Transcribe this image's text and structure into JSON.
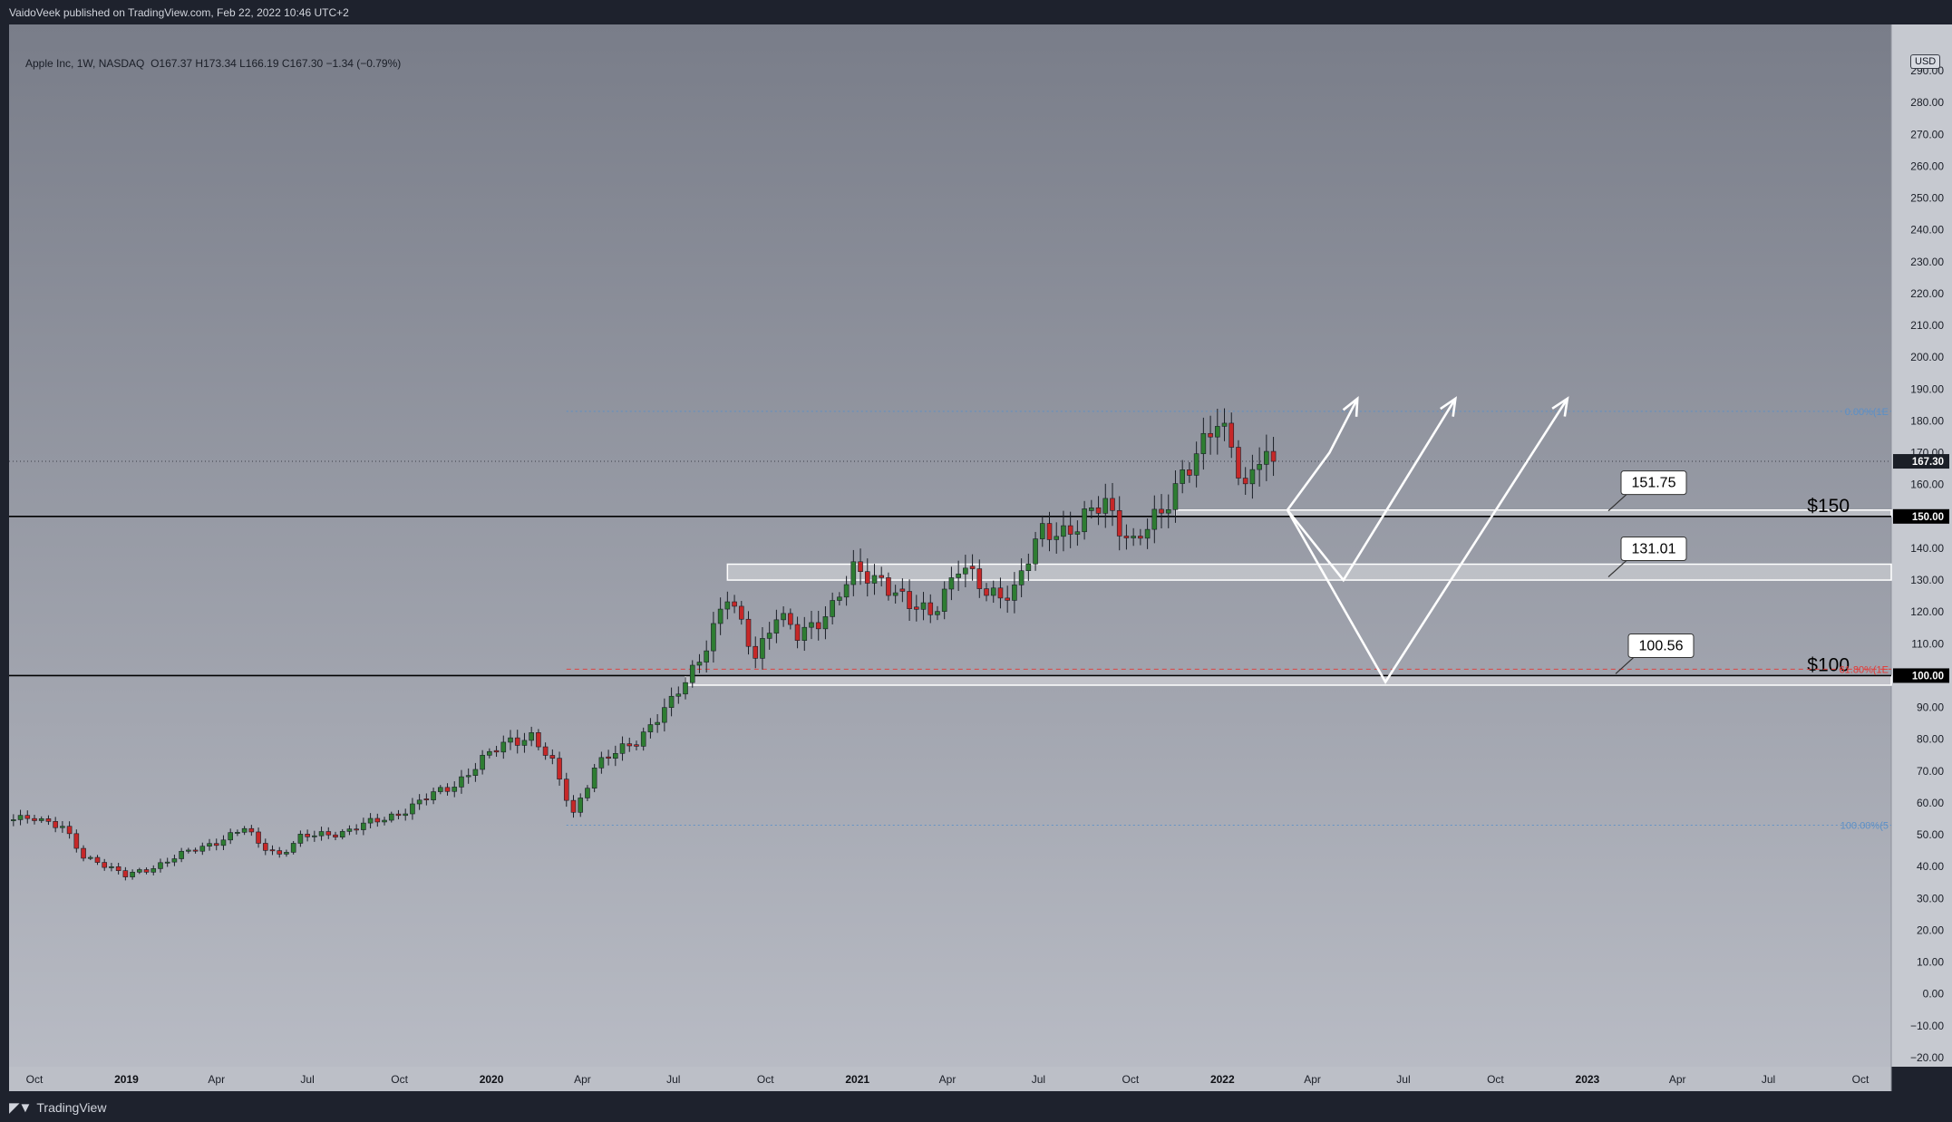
{
  "header": {
    "published": "VaidoVeek published on TradingView.com, Feb 22, 2022 10:46 UTC+2"
  },
  "legend": {
    "symbol": "Apple Inc, 1W, NASDAQ",
    "ohlc": "O167.37  H173.34  L166.19  C167.30  −1.34 (−0.79%)"
  },
  "currency": "USD",
  "footer": {
    "brand": "TradingView"
  },
  "colors": {
    "up": "#2e7d32",
    "down": "#c62828",
    "bg_top": "#7b7f8b",
    "bg_bottom": "#b7bac3",
    "accent_level": "#000000"
  },
  "chart_data": {
    "type": "candlestick",
    "title": "",
    "symbol": "AAPL",
    "interval": "1W",
    "ylim": [
      -25,
      300
    ],
    "y_ticks": [
      -20,
      -10,
      0,
      10,
      20,
      30,
      40,
      50,
      60,
      70,
      80,
      90,
      100,
      110,
      120,
      130,
      140,
      150,
      160,
      170,
      180,
      190,
      200,
      210,
      220,
      230,
      240,
      250,
      260,
      270,
      280,
      290
    ],
    "y_tick_labels": [
      "−20.00",
      "−10.00",
      "0.00",
      "10.00",
      "20.00",
      "30.00",
      "40.00",
      "50.00",
      "60.00",
      "70.00",
      "80.00",
      "90.00",
      "100.00",
      "110.00",
      "120.00",
      "130.00",
      "140.00",
      "150.00",
      "160.00",
      "170.00",
      "180.00",
      "190.00",
      "200.00",
      "210.00",
      "220.00",
      "230.00",
      "240.00",
      "250.00",
      "260.00",
      "270.00",
      "280.00",
      "290.00"
    ],
    "x_ticks": [
      {
        "label": "Oct",
        "date": "2018-10-01",
        "year": false
      },
      {
        "label": "2019",
        "date": "2019-01-01",
        "year": true
      },
      {
        "label": "Apr",
        "date": "2019-04-01",
        "year": false
      },
      {
        "label": "Jul",
        "date": "2019-07-01",
        "year": false
      },
      {
        "label": "Oct",
        "date": "2019-10-01",
        "year": false
      },
      {
        "label": "2020",
        "date": "2020-01-01",
        "year": true
      },
      {
        "label": "Apr",
        "date": "2020-04-01",
        "year": false
      },
      {
        "label": "Jul",
        "date": "2020-07-01",
        "year": false
      },
      {
        "label": "Oct",
        "date": "2020-10-01",
        "year": false
      },
      {
        "label": "2021",
        "date": "2021-01-01",
        "year": true
      },
      {
        "label": "Apr",
        "date": "2021-04-01",
        "year": false
      },
      {
        "label": "Jul",
        "date": "2021-07-01",
        "year": false
      },
      {
        "label": "Oct",
        "date": "2021-10-01",
        "year": false
      },
      {
        "label": "2022",
        "date": "2022-01-01",
        "year": true
      },
      {
        "label": "Apr",
        "date": "2022-04-01",
        "year": false
      },
      {
        "label": "Jul",
        "date": "2022-07-01",
        "year": false
      },
      {
        "label": "Oct",
        "date": "2022-10-01",
        "year": false
      },
      {
        "label": "2023",
        "date": "2023-01-01",
        "year": true
      },
      {
        "label": "Apr",
        "date": "2023-04-01",
        "year": false
      },
      {
        "label": "Jul",
        "date": "2023-07-01",
        "year": false
      },
      {
        "label": "Oct",
        "date": "2023-10-01",
        "year": false
      }
    ],
    "price_anchors": [
      {
        "date": "2018-08-20",
        "close": 54
      },
      {
        "date": "2018-09-17",
        "close": 55
      },
      {
        "date": "2018-10-01",
        "close": 56
      },
      {
        "date": "2018-10-29",
        "close": 52
      },
      {
        "date": "2018-11-19",
        "close": 43
      },
      {
        "date": "2018-12-03",
        "close": 42
      },
      {
        "date": "2018-12-31",
        "close": 37
      },
      {
        "date": "2019-01-21",
        "close": 39
      },
      {
        "date": "2019-02-18",
        "close": 43
      },
      {
        "date": "2019-03-18",
        "close": 46
      },
      {
        "date": "2019-04-29",
        "close": 52
      },
      {
        "date": "2019-05-13",
        "close": 47
      },
      {
        "date": "2019-06-03",
        "close": 44
      },
      {
        "date": "2019-06-24",
        "close": 49
      },
      {
        "date": "2019-08-05",
        "close": 51
      },
      {
        "date": "2019-09-16",
        "close": 55
      },
      {
        "date": "2019-10-14",
        "close": 59
      },
      {
        "date": "2019-11-25",
        "close": 66
      },
      {
        "date": "2019-12-30",
        "close": 75
      },
      {
        "date": "2020-01-20",
        "close": 80
      },
      {
        "date": "2020-02-10",
        "close": 81
      },
      {
        "date": "2020-03-02",
        "close": 72
      },
      {
        "date": "2020-03-23",
        "close": 57
      },
      {
        "date": "2020-04-13",
        "close": 71
      },
      {
        "date": "2020-05-25",
        "close": 80
      },
      {
        "date": "2020-06-29",
        "close": 91
      },
      {
        "date": "2020-07-27",
        "close": 106
      },
      {
        "date": "2020-08-24",
        "close": 124
      },
      {
        "date": "2020-09-21",
        "close": 107
      },
      {
        "date": "2020-10-12",
        "close": 119
      },
      {
        "date": "2020-11-02",
        "close": 112
      },
      {
        "date": "2020-12-07",
        "close": 122
      },
      {
        "date": "2020-12-28",
        "close": 132
      },
      {
        "date": "2021-01-25",
        "close": 131
      },
      {
        "date": "2021-02-22",
        "close": 121
      },
      {
        "date": "2021-03-15",
        "close": 120
      },
      {
        "date": "2021-04-12",
        "close": 134
      },
      {
        "date": "2021-05-10",
        "close": 126
      },
      {
        "date": "2021-06-07",
        "close": 127
      },
      {
        "date": "2021-07-05",
        "close": 145
      },
      {
        "date": "2021-08-09",
        "close": 147
      },
      {
        "date": "2021-09-06",
        "close": 154
      },
      {
        "date": "2021-10-04",
        "close": 142
      },
      {
        "date": "2021-11-01",
        "close": 150
      },
      {
        "date": "2021-11-22",
        "close": 165
      },
      {
        "date": "2021-12-13",
        "close": 172
      },
      {
        "date": "2021-12-27",
        "close": 178
      },
      {
        "date": "2022-01-10",
        "close": 173
      },
      {
        "date": "2022-01-24",
        "close": 160
      },
      {
        "date": "2022-02-07",
        "close": 169
      },
      {
        "date": "2022-02-21",
        "close": 167.3
      }
    ],
    "levels": [
      {
        "price": 150,
        "label": "$150",
        "badge": "150.00",
        "color": "#000000"
      },
      {
        "price": 100,
        "label": "$100",
        "badge": "100.00",
        "color": "#000000"
      }
    ],
    "last_price": {
      "price": 167.3,
      "badge": "167.30"
    },
    "zones": [
      {
        "from": 150,
        "to": 152,
        "start": "2021-11-15"
      },
      {
        "from": 130,
        "to": 135,
        "start": "2020-08-24"
      },
      {
        "from": 97,
        "to": 100,
        "start": "2020-07-13"
      }
    ],
    "callouts": [
      {
        "text": "151.75",
        "price": 151.75
      },
      {
        "text": "131.01",
        "price": 131.01
      },
      {
        "text": "100.56",
        "price": 100.56
      }
    ],
    "fib": [
      {
        "price": 183,
        "label": "0.00%(1E"
      },
      {
        "price": 102,
        "label": "61.80%(1E"
      },
      {
        "price": 53,
        "label": "100.00%(5"
      }
    ],
    "projections": [
      {
        "points": [
          [
            "2022-03-07",
            152
          ],
          [
            "2022-04-18",
            170
          ],
          [
            "2022-05-16",
            187
          ]
        ]
      },
      {
        "points": [
          [
            "2022-03-07",
            152
          ],
          [
            "2022-05-02",
            130
          ],
          [
            "2022-08-22",
            187
          ]
        ]
      },
      {
        "points": [
          [
            "2022-03-07",
            152
          ],
          [
            "2022-06-13",
            98
          ],
          [
            "2022-12-12",
            187
          ]
        ]
      }
    ],
    "grid": false,
    "legend_position": "top-left"
  }
}
